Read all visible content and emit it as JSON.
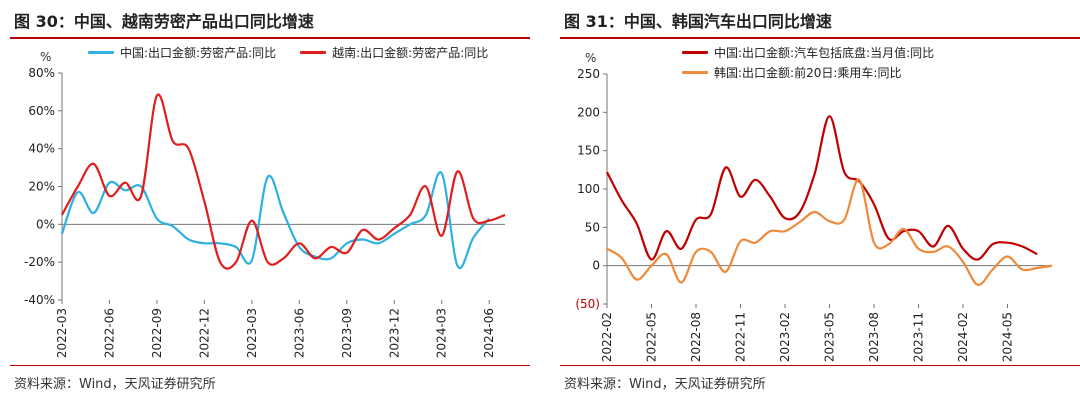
{
  "left": {
    "title": "图 30：中国、越南劳密产品出口同比增速",
    "source": "资料来源：Wind，天风证券研究所"
  },
  "right": {
    "title": "图 31：中国、韩国汽车出口同比增速",
    "source": "资料来源：Wind，天风证券研究所"
  },
  "chart_data": [
    {
      "type": "line",
      "ylabel": "%",
      "ylim": [
        -40,
        80
      ],
      "yticks": [
        80,
        60,
        40,
        20,
        0,
        -20,
        -40
      ],
      "ytick_labels": [
        "80%",
        "60%",
        "40%",
        "20%",
        "0%",
        "-20%",
        "-40%"
      ],
      "xlim": [
        "2022-03",
        "2024-07"
      ],
      "xticks": [
        "2022-03",
        "2022-06",
        "2022-09",
        "2022-12",
        "2023-03",
        "2023-06",
        "2023-09",
        "2023-12",
        "2024-03",
        "2024-06"
      ],
      "legend_placement": "top",
      "grid": false,
      "series": [
        {
          "name": "中国:出口金额:劳密产品:同比",
          "color": "#2eb0e3",
          "x": [
            "2022-03",
            "2022-04",
            "2022-05",
            "2022-06",
            "2022-07",
            "2022-08",
            "2022-09",
            "2022-10",
            "2022-11",
            "2022-12",
            "2023-01",
            "2023-02",
            "2023-03",
            "2023-04",
            "2023-05",
            "2023-06",
            "2023-07",
            "2023-08",
            "2023-09",
            "2023-10",
            "2023-11",
            "2023-12",
            "2024-01",
            "2024-02",
            "2024-03",
            "2024-04",
            "2024-05",
            "2024-06"
          ],
          "y": [
            -5,
            17,
            6,
            22,
            18,
            20,
            3,
            -1,
            -8,
            -10,
            -10,
            -12,
            -19,
            25,
            6,
            -12,
            -17,
            -18,
            -10,
            -8,
            -10,
            -5,
            0,
            5,
            27,
            -22,
            -7,
            3
          ]
        },
        {
          "name": "越南:出口金额:劳密产品:同比",
          "color": "#e01e1e",
          "x": [
            "2022-03",
            "2022-04",
            "2022-05",
            "2022-06",
            "2022-07",
            "2022-08",
            "2022-09",
            "2022-10",
            "2022-11",
            "2022-12",
            "2023-01",
            "2023-02",
            "2023-03",
            "2023-04",
            "2023-05",
            "2023-06",
            "2023-07",
            "2023-08",
            "2023-09",
            "2023-10",
            "2023-11",
            "2023-12",
            "2024-01",
            "2024-02",
            "2024-03",
            "2024-04",
            "2024-05",
            "2024-06",
            "2024-07"
          ],
          "y": [
            5,
            20,
            32,
            15,
            22,
            15,
            68,
            44,
            40,
            12,
            -20,
            -20,
            2,
            -20,
            -18,
            -10,
            -18,
            -12,
            -15,
            -3,
            -8,
            -2,
            5,
            20,
            -6,
            28,
            3,
            2,
            5
          ]
        }
      ]
    },
    {
      "type": "line",
      "ylabel": "%",
      "ylim": [
        -50,
        250
      ],
      "yticks": [
        250,
        200,
        150,
        100,
        50,
        0,
        -50
      ],
      "ytick_labels": [
        "250",
        "200",
        "150",
        "100",
        "50",
        "0",
        "(50)"
      ],
      "xlim": [
        "2022-02",
        "2024-08"
      ],
      "xticks": [
        "2022-02",
        "2022-05",
        "2022-08",
        "2022-11",
        "2023-02",
        "2023-05",
        "2023-08",
        "2023-11",
        "2024-02",
        "2024-05"
      ],
      "legend_placement": "top",
      "grid": false,
      "series": [
        {
          "name": "中国:出口金额:汽车包括底盘:当月值:同比",
          "color": "#c00000",
          "x": [
            "2022-02",
            "2022-03",
            "2022-04",
            "2022-05",
            "2022-06",
            "2022-07",
            "2022-08",
            "2022-09",
            "2022-10",
            "2022-11",
            "2022-12",
            "2023-01",
            "2023-02",
            "2023-03",
            "2023-04",
            "2023-05",
            "2023-06",
            "2023-07",
            "2023-08",
            "2023-09",
            "2023-10",
            "2023-11",
            "2023-12",
            "2024-01",
            "2024-02",
            "2024-03",
            "2024-04",
            "2024-05",
            "2024-06",
            "2024-07"
          ],
          "y": [
            122,
            85,
            55,
            8,
            45,
            22,
            60,
            67,
            128,
            90,
            112,
            90,
            62,
            70,
            120,
            195,
            122,
            110,
            80,
            35,
            45,
            45,
            25,
            52,
            22,
            8,
            28,
            30,
            25,
            15
          ]
        },
        {
          "name": "韩国:出口金额:前20日:乘用车:同比",
          "color": "#ee8a3c",
          "x": [
            "2022-02",
            "2022-03",
            "2022-04",
            "2022-05",
            "2022-06",
            "2022-07",
            "2022-08",
            "2022-09",
            "2022-10",
            "2022-11",
            "2022-12",
            "2023-01",
            "2023-02",
            "2023-03",
            "2023-04",
            "2023-05",
            "2023-06",
            "2023-07",
            "2023-08",
            "2023-09",
            "2023-10",
            "2023-11",
            "2023-12",
            "2024-01",
            "2024-02",
            "2024-03",
            "2024-04",
            "2024-05",
            "2024-06",
            "2024-07",
            "2024-08"
          ],
          "y": [
            22,
            10,
            -18,
            0,
            15,
            -22,
            18,
            18,
            -8,
            32,
            30,
            45,
            45,
            57,
            70,
            58,
            60,
            112,
            30,
            28,
            48,
            22,
            18,
            25,
            5,
            -25,
            -5,
            12,
            -5,
            -3,
            0
          ]
        }
      ]
    }
  ]
}
